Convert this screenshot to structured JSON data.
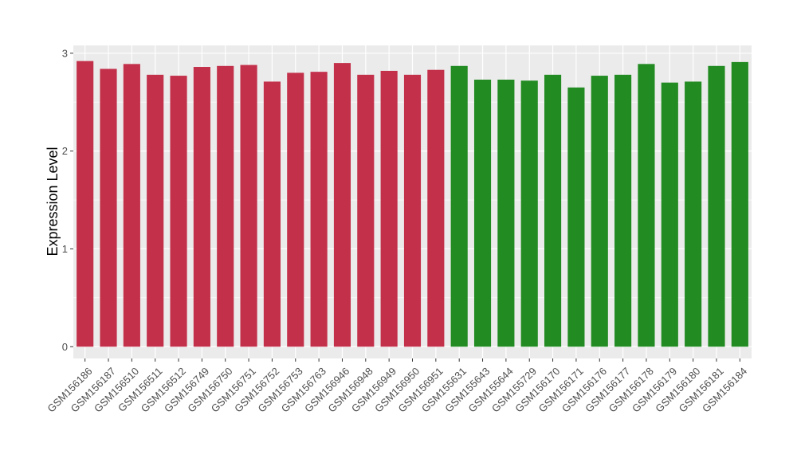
{
  "chart_data": {
    "type": "bar",
    "xlabel": "",
    "ylabel": "Expression Level",
    "ylim": [
      -0.12,
      3.08
    ],
    "yticks": [
      0,
      1,
      2,
      3
    ],
    "grid": true,
    "legend": "none",
    "categories": [
      "GSM156186",
      "GSM156187",
      "GSM156510",
      "GSM156511",
      "GSM156512",
      "GSM156749",
      "GSM156750",
      "GSM156751",
      "GSM156752",
      "GSM156753",
      "GSM156763",
      "GSM156946",
      "GSM156948",
      "GSM156949",
      "GSM156950",
      "GSM156951",
      "GSM155631",
      "GSM155643",
      "GSM155644",
      "GSM155729",
      "GSM156170",
      "GSM156171",
      "GSM156176",
      "GSM156177",
      "GSM156178",
      "GSM156179",
      "GSM156180",
      "GSM156181",
      "GSM156184"
    ],
    "values": [
      2.92,
      2.84,
      2.89,
      2.78,
      2.77,
      2.86,
      2.87,
      2.88,
      2.71,
      2.8,
      2.81,
      2.9,
      2.78,
      2.82,
      2.78,
      2.83,
      2.87,
      2.73,
      2.73,
      2.72,
      2.78,
      2.65,
      2.77,
      2.78,
      2.89,
      2.7,
      2.71,
      2.87,
      2.91
    ],
    "bar_colors": [
      "#c3304a",
      "#c3304a",
      "#c3304a",
      "#c3304a",
      "#c3304a",
      "#c3304a",
      "#c3304a",
      "#c3304a",
      "#c3304a",
      "#c3304a",
      "#c3304a",
      "#c3304a",
      "#c3304a",
      "#c3304a",
      "#c3304a",
      "#c3304a",
      "#228b22",
      "#228b22",
      "#228b22",
      "#228b22",
      "#228b22",
      "#228b22",
      "#228b22",
      "#228b22",
      "#228b22",
      "#228b22",
      "#228b22",
      "#228b22",
      "#228b22"
    ],
    "panel_background": "#ebebeb",
    "grid_color": "#ffffff"
  }
}
